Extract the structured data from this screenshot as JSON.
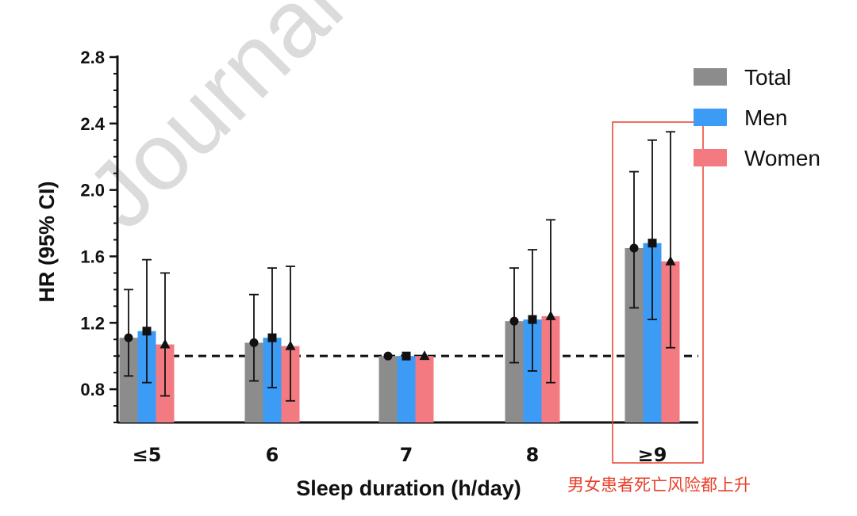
{
  "watermark": "Journal",
  "annotation": "男女患者死亡风险都上升",
  "colors": {
    "Total": "#8c8c8c",
    "Men": "#3b9bf5",
    "Women": "#f47a82",
    "highlight": "#e8402a"
  },
  "chart_data": {
    "type": "bar",
    "xlabel": "Sleep duration (h/day)",
    "ylabel": "HR (95% CI)",
    "categories": [
      "≤5",
      "6",
      "7",
      "8",
      "≥9"
    ],
    "ylim": [
      0.6,
      2.8
    ],
    "yticks": [
      "0.8",
      "1.2",
      "1.6",
      "2.0",
      "2.4",
      "2.8"
    ],
    "reference_line": 1.0,
    "legend_position": "top-right",
    "highlighted_category": "≥9",
    "series": [
      {
        "name": "Total",
        "marker": "circle",
        "values": [
          1.11,
          1.08,
          1.0,
          1.21,
          1.65
        ],
        "ci_low": [
          0.88,
          0.85,
          1.0,
          0.96,
          1.29
        ],
        "ci_high": [
          1.4,
          1.37,
          1.0,
          1.53,
          2.11
        ]
      },
      {
        "name": "Men",
        "marker": "square",
        "values": [
          1.15,
          1.11,
          1.0,
          1.22,
          1.68
        ],
        "ci_low": [
          0.84,
          0.81,
          1.0,
          0.91,
          1.22
        ],
        "ci_high": [
          1.58,
          1.53,
          1.0,
          1.64,
          2.3
        ]
      },
      {
        "name": "Women",
        "marker": "triangle",
        "values": [
          1.07,
          1.06,
          1.0,
          1.24,
          1.57
        ],
        "ci_low": [
          0.76,
          0.73,
          1.0,
          0.84,
          1.05
        ],
        "ci_high": [
          1.5,
          1.54,
          1.0,
          1.82,
          2.35
        ]
      }
    ]
  }
}
